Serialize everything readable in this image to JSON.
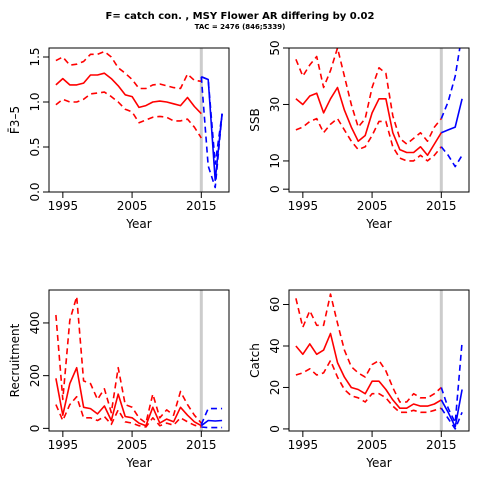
{
  "header": {
    "title": "F= catch con. , MSY Flower AR differing by 0.02",
    "subtitle": "TAC = 2476 (846;5339)"
  },
  "colors": {
    "historic": "#ff0000",
    "forecast": "#0000ff",
    "divider": "#cccccc"
  },
  "chart_data": [
    {
      "id": "f",
      "type": "line",
      "xlabel": "Year",
      "ylabel": "F̄3–5",
      "ylim": [
        0,
        1.6
      ],
      "xlim": [
        1993,
        2019
      ],
      "xticks": [
        "1995",
        "2005",
        "2015"
      ],
      "yticks": [
        "0.0",
        "0.5",
        "1.0",
        "1.5"
      ],
      "divider_year": 2015,
      "series": [
        {
          "role": "historic",
          "style": "solid",
          "x": [
            1994,
            1995,
            1996,
            1997,
            1998,
            1999,
            2000,
            2001,
            2002,
            2003,
            2004,
            2005,
            2006,
            2007,
            2008,
            2009,
            2010,
            2011,
            2012,
            2013,
            2014,
            2015
          ],
          "values": [
            1.19,
            1.26,
            1.19,
            1.19,
            1.21,
            1.3,
            1.3,
            1.32,
            1.26,
            1.18,
            1.08,
            1.06,
            0.94,
            0.96,
            1.0,
            1.01,
            1.0,
            0.98,
            0.96,
            1.05,
            0.95,
            0.87
          ]
        },
        {
          "role": "historic",
          "style": "dashed",
          "x": [
            1994,
            1995,
            1996,
            1997,
            1998,
            1999,
            2000,
            2001,
            2002,
            2003,
            2004,
            2005,
            2006,
            2007,
            2008,
            2009,
            2010,
            2011,
            2012,
            2013,
            2014,
            2015
          ],
          "values": [
            1.46,
            1.5,
            1.41,
            1.42,
            1.45,
            1.53,
            1.53,
            1.56,
            1.5,
            1.38,
            1.32,
            1.25,
            1.15,
            1.15,
            1.19,
            1.2,
            1.18,
            1.16,
            1.15,
            1.31,
            1.24,
            1.23
          ]
        },
        {
          "role": "historic",
          "style": "dashed",
          "x": [
            1994,
            1995,
            1996,
            1997,
            1998,
            1999,
            2000,
            2001,
            2002,
            2003,
            2004,
            2005,
            2006,
            2007,
            2008,
            2009,
            2010,
            2011,
            2012,
            2013,
            2014,
            2015
          ],
          "values": [
            0.97,
            1.03,
            1.0,
            1.0,
            1.03,
            1.09,
            1.1,
            1.11,
            1.06,
            1.0,
            0.92,
            0.89,
            0.77,
            0.8,
            0.83,
            0.84,
            0.83,
            0.79,
            0.79,
            0.81,
            0.72,
            0.6
          ]
        },
        {
          "role": "forecast",
          "style": "solid",
          "x": [
            2015,
            2016,
            2017,
            2018
          ],
          "values": [
            1.28,
            1.25,
            0.13,
            0.87
          ]
        },
        {
          "role": "forecast",
          "style": "dashed",
          "x": [
            2015,
            2016,
            2017,
            2018
          ],
          "values": [
            1.28,
            1.25,
            0.31,
            0.87
          ]
        },
        {
          "role": "forecast",
          "style": "dashed",
          "x": [
            2015,
            2016,
            2017,
            2018
          ],
          "values": [
            1.28,
            0.29,
            0.05,
            0.87
          ]
        }
      ]
    },
    {
      "id": "ssb",
      "type": "line",
      "xlabel": "Year",
      "ylabel": "SSB",
      "ylim": [
        -1,
        50
      ],
      "xlim": [
        1993,
        2019
      ],
      "xticks": [
        "1995",
        "2005",
        "2015"
      ],
      "yticks": [
        "0",
        "10",
        "30",
        "50"
      ],
      "divider_year": 2015,
      "series": [
        {
          "role": "historic",
          "style": "solid",
          "x": [
            1994,
            1995,
            1996,
            1997,
            1998,
            1999,
            2000,
            2001,
            2002,
            2003,
            2004,
            2005,
            2006,
            2007,
            2008,
            2009,
            2010,
            2011,
            2012,
            2013,
            2014,
            2015
          ],
          "values": [
            32,
            30,
            33,
            34,
            27,
            32,
            36,
            28,
            22,
            17,
            19,
            27,
            32,
            32,
            20,
            14,
            13,
            13,
            15,
            12,
            16,
            20
          ]
        },
        {
          "role": "historic",
          "style": "dashed",
          "x": [
            1994,
            1995,
            1996,
            1997,
            1998,
            1999,
            2000,
            2001,
            2002,
            2003,
            2004,
            2005,
            2006,
            2007,
            2008,
            2009,
            2010,
            2011,
            2012,
            2013,
            2014,
            2015
          ],
          "values": [
            46,
            40,
            44,
            47,
            36,
            42,
            50,
            40,
            30,
            22,
            25,
            36,
            43,
            41,
            26,
            18,
            16,
            18,
            20,
            17,
            22,
            25
          ]
        },
        {
          "role": "historic",
          "style": "dashed",
          "x": [
            1994,
            1995,
            1996,
            1997,
            1998,
            1999,
            2000,
            2001,
            2002,
            2003,
            2004,
            2005,
            2006,
            2007,
            2008,
            2009,
            2010,
            2011,
            2012,
            2013,
            2014,
            2015
          ],
          "values": [
            21,
            22,
            24,
            25,
            20,
            23,
            25,
            21,
            17,
            14,
            15,
            19,
            24,
            24,
            15,
            11,
            10,
            10,
            12,
            10,
            12,
            15
          ]
        },
        {
          "role": "forecast",
          "style": "solid",
          "x": [
            2015,
            2016,
            2017,
            2018
          ],
          "values": [
            20,
            21,
            22,
            32
          ]
        },
        {
          "role": "forecast",
          "style": "dashed",
          "x": [
            2015,
            2016,
            2017,
            2018
          ],
          "values": [
            25,
            31,
            40,
            55
          ]
        },
        {
          "role": "forecast",
          "style": "dashed",
          "x": [
            2015,
            2016,
            2017,
            2018
          ],
          "values": [
            15,
            12,
            8,
            12
          ]
        }
      ]
    },
    {
      "id": "recruitment",
      "type": "line",
      "xlabel": "Year",
      "ylabel": "Recruitment",
      "ylim": [
        -10,
        525
      ],
      "xlim": [
        1993,
        2019
      ],
      "xticks": [
        "1995",
        "2005",
        "2015"
      ],
      "yticks": [
        "0",
        "200",
        "400"
      ],
      "divider_year": 2015,
      "series": [
        {
          "role": "historic",
          "style": "solid",
          "x": [
            1994,
            1995,
            1996,
            1997,
            1998,
            1999,
            2000,
            2001,
            2002,
            2003,
            2004,
            2005,
            2006,
            2007,
            2008,
            2009,
            2010,
            2011,
            2012,
            2013,
            2014,
            2015
          ],
          "values": [
            190,
            50,
            170,
            230,
            80,
            75,
            55,
            85,
            30,
            130,
            45,
            40,
            20,
            10,
            80,
            20,
            35,
            25,
            80,
            50,
            25,
            10
          ]
        },
        {
          "role": "historic",
          "style": "dashed",
          "x": [
            1994,
            1995,
            1996,
            1997,
            1998,
            1999,
            2000,
            2001,
            2002,
            2003,
            2004,
            2005,
            2006,
            2007,
            2008,
            2009,
            2010,
            2011,
            2012,
            2013,
            2014,
            2015
          ],
          "values": [
            430,
            110,
            410,
            500,
            180,
            170,
            110,
            150,
            60,
            230,
            90,
            80,
            40,
            20,
            130,
            40,
            70,
            50,
            140,
            90,
            50,
            20
          ]
        },
        {
          "role": "historic",
          "style": "dashed",
          "x": [
            1994,
            1995,
            1996,
            1997,
            1998,
            1999,
            2000,
            2001,
            2002,
            2003,
            2004,
            2005,
            2006,
            2007,
            2008,
            2009,
            2010,
            2011,
            2012,
            2013,
            2014,
            2015
          ],
          "values": [
            90,
            30,
            90,
            120,
            40,
            40,
            30,
            45,
            15,
            70,
            25,
            20,
            10,
            5,
            40,
            10,
            20,
            12,
            40,
            25,
            12,
            5
          ]
        },
        {
          "role": "forecast",
          "style": "solid",
          "x": [
            2015,
            2016,
            2017,
            2018
          ],
          "values": [
            10,
            30,
            28,
            30
          ]
        },
        {
          "role": "forecast",
          "style": "dashed",
          "x": [
            2015,
            2016,
            2017,
            2018
          ],
          "values": [
            15,
            75,
            75,
            75
          ]
        },
        {
          "role": "forecast",
          "style": "dashed",
          "x": [
            2015,
            2016,
            2017,
            2018
          ],
          "values": [
            5,
            3,
            3,
            3
          ]
        }
      ]
    },
    {
      "id": "catch",
      "type": "line",
      "xlabel": "Year",
      "ylabel": "Catch",
      "ylim": [
        -1,
        67
      ],
      "xlim": [
        1993,
        2019
      ],
      "xticks": [
        "1995",
        "2005",
        "2015"
      ],
      "yticks": [
        "0",
        "20",
        "40",
        "60"
      ],
      "divider_year": 2015,
      "series": [
        {
          "role": "historic",
          "style": "solid",
          "x": [
            1994,
            1995,
            1996,
            1997,
            1998,
            1999,
            2000,
            2001,
            2002,
            2003,
            2004,
            2005,
            2006,
            2007,
            2008,
            2009,
            2010,
            2011,
            2012,
            2013,
            2014,
            2015
          ],
          "values": [
            40,
            36,
            41,
            36,
            38,
            46,
            32,
            25,
            20,
            19,
            17,
            23,
            23,
            19,
            14,
            10,
            10,
            12,
            11,
            11,
            12,
            14
          ]
        },
        {
          "role": "historic",
          "style": "dashed",
          "x": [
            1994,
            1995,
            1996,
            1997,
            1998,
            1999,
            2000,
            2001,
            2002,
            2003,
            2004,
            2005,
            2006,
            2007,
            2008,
            2009,
            2010,
            2011,
            2012,
            2013,
            2014,
            2015
          ],
          "values": [
            63,
            49,
            57,
            50,
            50,
            65,
            51,
            38,
            30,
            27,
            25,
            31,
            33,
            28,
            20,
            13,
            13,
            17,
            15,
            15,
            17,
            20
          ]
        },
        {
          "role": "historic",
          "style": "dashed",
          "x": [
            1994,
            1995,
            1996,
            1997,
            1998,
            1999,
            2000,
            2001,
            2002,
            2003,
            2004,
            2005,
            2006,
            2007,
            2008,
            2009,
            2010,
            2011,
            2012,
            2013,
            2014,
            2015
          ],
          "values": [
            26,
            27,
            29,
            26,
            27,
            33,
            25,
            19,
            16,
            15,
            13,
            17,
            17,
            15,
            11,
            8,
            8,
            9,
            8,
            8,
            9,
            10
          ]
        },
        {
          "role": "forecast",
          "style": "solid",
          "x": [
            2015,
            2016,
            2017,
            2018
          ],
          "values": [
            14,
            8,
            1,
            19
          ]
        },
        {
          "role": "forecast",
          "style": "dashed",
          "x": [
            2015,
            2016,
            2017,
            2018
          ],
          "values": [
            20,
            10,
            3,
            42
          ]
        },
        {
          "role": "forecast",
          "style": "dashed",
          "x": [
            2015,
            2016,
            2017,
            2018
          ],
          "values": [
            10,
            5,
            0,
            8
          ]
        }
      ]
    }
  ]
}
